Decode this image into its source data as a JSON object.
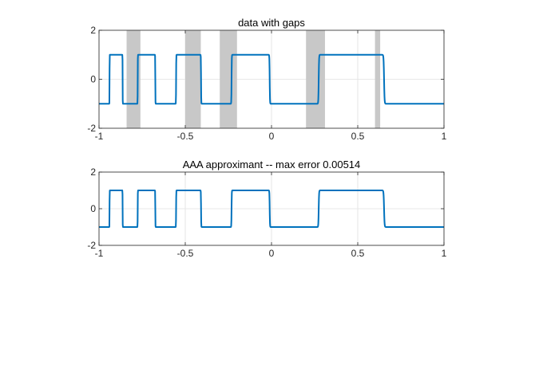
{
  "colors": {
    "line": "#0072bd",
    "gap": "#c8c8c8",
    "grid": "#e0e0e0",
    "axis": "#262626",
    "background": "#ffffff"
  },
  "chart_data": [
    {
      "type": "line",
      "title": "data with gaps",
      "xlabel": "",
      "ylabel": "",
      "xlim": [
        -1,
        1
      ],
      "ylim": [
        -2,
        2
      ],
      "xticks": [
        -1,
        -0.5,
        0,
        0.5,
        1
      ],
      "xtick_labels": [
        "-1",
        "-0.5",
        "0",
        "0.5",
        "1"
      ],
      "yticks": [
        -2,
        0,
        2
      ],
      "ytick_labels": [
        "-2",
        "0",
        "2"
      ],
      "grid": true,
      "legend": "none",
      "function": "tanh(50*sin(50/(x+2)))/tanh(50) evaluated on [-1,1]",
      "gaps": [
        [
          -0.84,
          -0.76
        ],
        [
          -0.5,
          -0.41
        ],
        [
          -0.3,
          -0.2
        ],
        [
          0.2,
          0.31
        ],
        [
          0.6,
          0.63
        ]
      ]
    },
    {
      "type": "line",
      "title": "AAA approximant -- max error 0.00514",
      "xlabel": "",
      "ylabel": "",
      "xlim": [
        -1,
        1
      ],
      "ylim": [
        -2,
        2
      ],
      "xticks": [
        -1,
        -0.5,
        0,
        0.5,
        1
      ],
      "xtick_labels": [
        "-1",
        "-0.5",
        "0",
        "0.5",
        "1"
      ],
      "yticks": [
        -2,
        0,
        2
      ],
      "ytick_labels": [
        "-2",
        "0",
        "2"
      ],
      "grid": true,
      "legend": "none",
      "function": "tanh(50*sin(50/(x+2)))/tanh(50) evaluated on [-1,1]",
      "gaps": []
    }
  ]
}
